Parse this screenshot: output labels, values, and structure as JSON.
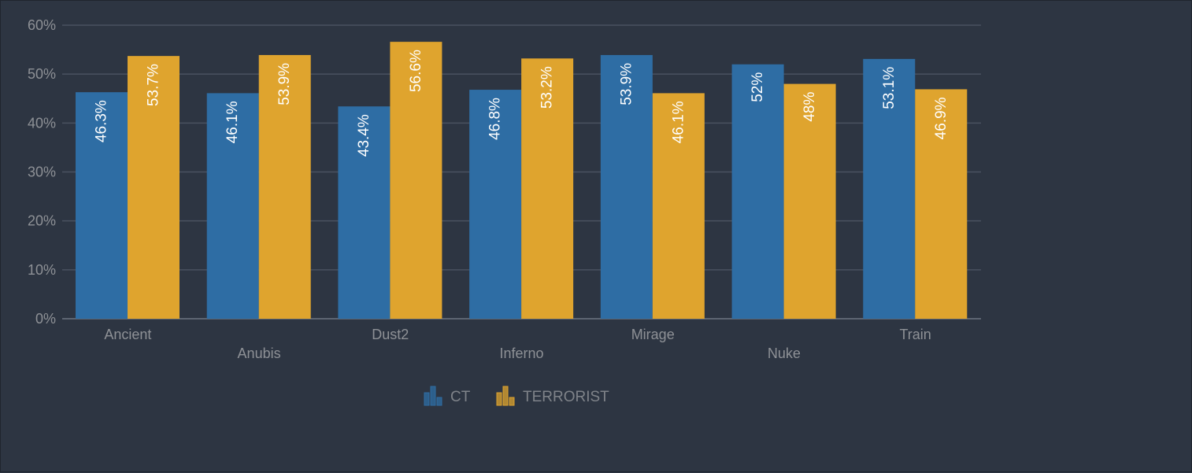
{
  "chart_data": {
    "type": "bar",
    "categories": [
      "Ancient",
      "Anubis",
      "Dust2",
      "Inferno",
      "Mirage",
      "Nuke",
      "Train"
    ],
    "series": [
      {
        "name": "CT",
        "color": "#2e6da4",
        "values": [
          46.3,
          46.1,
          43.4,
          46.8,
          53.9,
          52,
          53.1
        ],
        "labels": [
          "46.3%",
          "46.1%",
          "43.4%",
          "46.8%",
          "53.9%",
          "52%",
          "53.1%"
        ]
      },
      {
        "name": "TERRORIST",
        "color": "#dfa42e",
        "values": [
          53.7,
          53.9,
          56.6,
          53.2,
          46.1,
          48,
          46.9
        ],
        "labels": [
          "53.7%",
          "53.9%",
          "56.6%",
          "53.2%",
          "46.1%",
          "48%",
          "46.9%"
        ]
      }
    ],
    "yticks": [
      0,
      10,
      20,
      30,
      40,
      50,
      60
    ],
    "ytick_labels": [
      "0%",
      "10%",
      "20%",
      "30%",
      "40%",
      "50%",
      "60%"
    ],
    "ylim": [
      0,
      60
    ],
    "grid": true,
    "legend_position": "bottom-center",
    "legend_icon": "bar-chart-icon",
    "title": "",
    "xlabel": "",
    "ylabel": ""
  },
  "colors": {
    "background": "#2d3542",
    "grid": "#4a5260",
    "axis": "#5d6572",
    "tick_text": "#8e9196",
    "label_text": "#ffffff"
  }
}
